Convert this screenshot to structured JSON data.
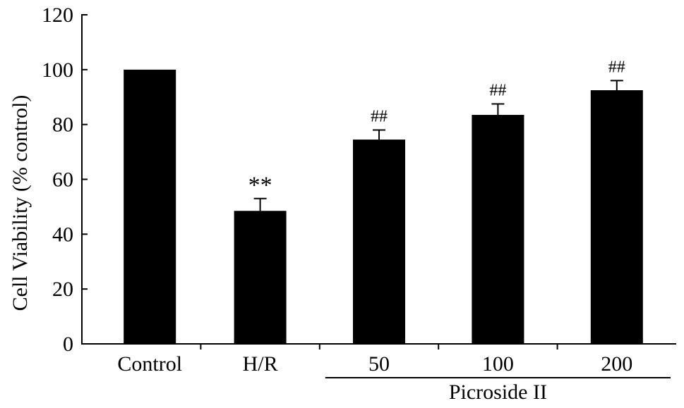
{
  "chart_data": {
    "type": "bar",
    "title": "",
    "xlabel": "",
    "ylabel": "Cell Viability (% control)",
    "ylim": [
      0,
      120
    ],
    "yticks": [
      0,
      20,
      40,
      60,
      80,
      100,
      120
    ],
    "categories": [
      "Control",
      "H/R",
      "50",
      "100",
      "200"
    ],
    "values": [
      100,
      48.5,
      74.5,
      83.5,
      92.5
    ],
    "errors": [
      0,
      4.5,
      3.5,
      4,
      3.5
    ],
    "annotations": [
      "",
      "**",
      "##",
      "##",
      "##"
    ],
    "group_label": {
      "text": "Picroside II",
      "categories": [
        "50",
        "100",
        "200"
      ]
    },
    "bar_color": "#000000",
    "grid": false,
    "legend": "none"
  }
}
